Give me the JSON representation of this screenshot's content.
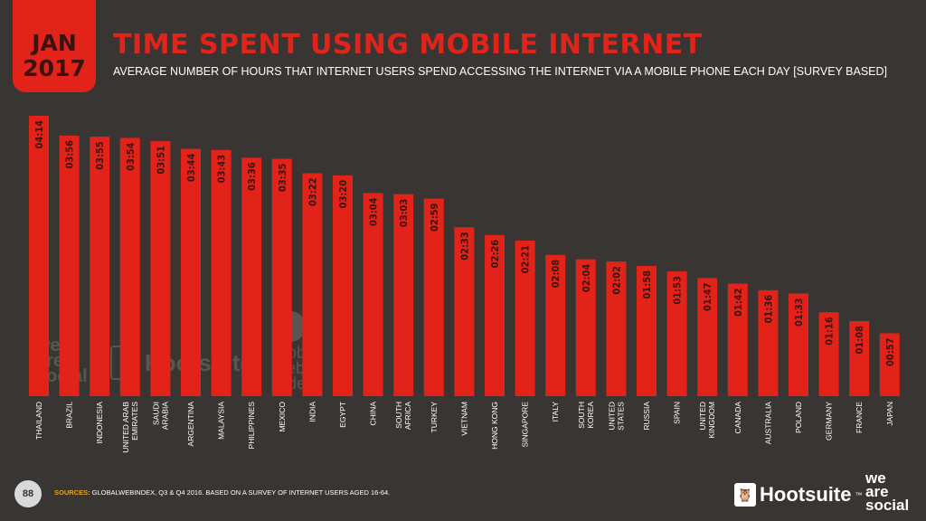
{
  "header": {
    "month": "JAN",
    "year": "2017",
    "title": "TIME SPENT USING MOBILE INTERNET",
    "subtitle": "AVERAGE NUMBER OF HOURS THAT INTERNET USERS SPEND ACCESSING THE INTERNET VIA A MOBILE PHONE EACH DAY [SURVEY BASED]"
  },
  "colors": {
    "background": "#383532",
    "accent_red": "#e2231a",
    "sources_label": "#e8a21a"
  },
  "chart_data": {
    "type": "bar",
    "title": "TIME SPENT USING MOBILE INTERNET",
    "unit": "hours:minutes per day",
    "categories": [
      [
        "THAILAND"
      ],
      [
        "BRAZIL"
      ],
      [
        "INDONESIA"
      ],
      [
        "UNITED ARAB",
        "EMIRATES"
      ],
      [
        "SAUDI",
        "ARABIA"
      ],
      [
        "ARGENTINA"
      ],
      [
        "MALAYSIA"
      ],
      [
        "PHILIPPINES"
      ],
      [
        "MEXICO"
      ],
      [
        "INDIA"
      ],
      [
        "EGYPT"
      ],
      [
        "CHINA"
      ],
      [
        "SOUTH",
        "AFRICA"
      ],
      [
        "TURKEY"
      ],
      [
        "VIETNAM"
      ],
      [
        "HONG KONG"
      ],
      [
        "SINGAPORE"
      ],
      [
        "ITALY"
      ],
      [
        "SOUTH",
        "KOREA"
      ],
      [
        "UNITED",
        "STATES"
      ],
      [
        "RUSSIA"
      ],
      [
        "SPAIN"
      ],
      [
        "UNITED",
        "KINGDOM"
      ],
      [
        "CANADA"
      ],
      [
        "AUSTRALIA"
      ],
      [
        "POLAND"
      ],
      [
        "GERMANY"
      ],
      [
        "FRANCE"
      ],
      [
        "JAPAN"
      ]
    ],
    "labels": [
      "04:14",
      "03:56",
      "03:55",
      "03:54",
      "03:51",
      "03:44",
      "03:43",
      "03:36",
      "03:35",
      "03:22",
      "03:20",
      "03:04",
      "03:03",
      "02:59",
      "02:33",
      "02:26",
      "02:21",
      "02:08",
      "02:04",
      "02:02",
      "01:58",
      "01:53",
      "01:47",
      "01:42",
      "01:36",
      "01:33",
      "01:16",
      "01:08",
      "00:57"
    ],
    "values_minutes": [
      254,
      236,
      235,
      234,
      231,
      224,
      223,
      216,
      215,
      202,
      200,
      184,
      183,
      179,
      153,
      146,
      141,
      128,
      124,
      122,
      118,
      113,
      107,
      102,
      96,
      93,
      76,
      68,
      57
    ],
    "ylim": [
      0,
      254
    ]
  },
  "watermarks": {
    "we_are_social": [
      "we",
      "are",
      "social"
    ],
    "hootsuite": "Hootsuite",
    "global_web_index": [
      "global",
      "web",
      "index"
    ]
  },
  "footer": {
    "page_number": "88",
    "sources_label": "SOURCES:",
    "sources_text": " GLOBALWEBINDEX, Q3 & Q4 2016. BASED ON A SURVEY OF INTERNET USERS AGED 16-64.",
    "hootsuite_brand": "Hootsuite",
    "hootsuite_owl_icon": "owl-icon",
    "trademark": "™",
    "we_are_social_brand": [
      "we",
      "are",
      "social"
    ]
  }
}
